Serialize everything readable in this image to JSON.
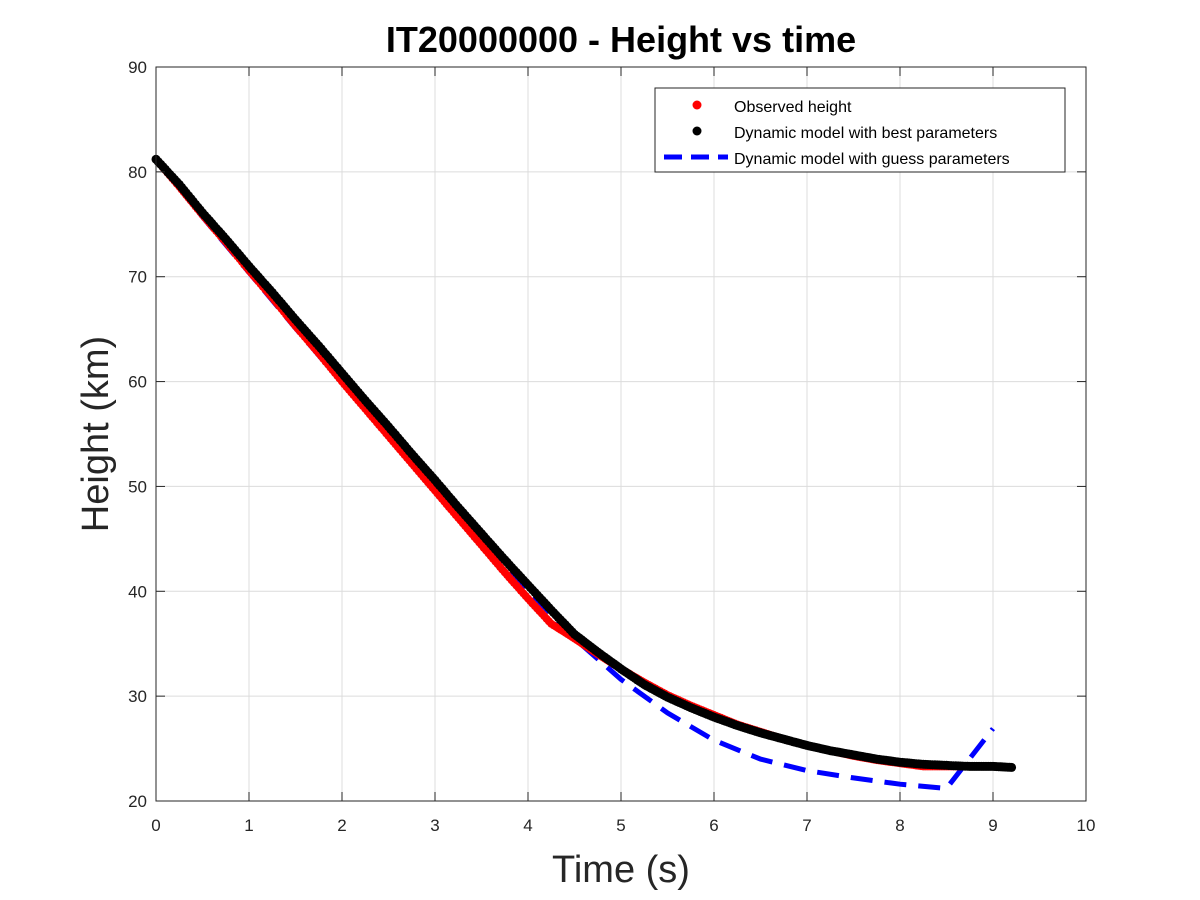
{
  "chart_data": {
    "type": "scatter",
    "title": "IT20000000 - Height vs time",
    "xlabel": "Time (s)",
    "ylabel": "Height (km)",
    "xlim": [
      0,
      10
    ],
    "ylim": [
      20,
      90
    ],
    "xticks": [
      0,
      1,
      2,
      3,
      4,
      5,
      6,
      7,
      8,
      9,
      10
    ],
    "yticks": [
      20,
      30,
      40,
      50,
      60,
      70,
      80,
      90
    ],
    "grid": true,
    "legend_position": "top-right",
    "series": [
      {
        "name": "Observed height",
        "style": "markers",
        "color": "#ff0000",
        "x": [
          0.0,
          0.25,
          0.5,
          0.75,
          1.0,
          1.25,
          1.5,
          1.75,
          2.0,
          2.25,
          2.5,
          2.75,
          3.0,
          3.25,
          3.5,
          3.75,
          4.0,
          4.25,
          4.5,
          4.75,
          5.0,
          5.25,
          5.5,
          5.75,
          6.0,
          6.25,
          6.5,
          6.75,
          7.0,
          7.25,
          7.5,
          7.75,
          8.0,
          8.25,
          8.5,
          8.75,
          9.0,
          9.2
        ],
        "y": [
          81.2,
          78.6,
          75.9,
          73.3,
          70.6,
          68.0,
          65.3,
          62.7,
          60.0,
          57.4,
          54.8,
          52.2,
          49.6,
          47.0,
          44.4,
          41.8,
          39.3,
          36.9,
          35.5,
          34.0,
          32.6,
          31.3,
          30.1,
          29.1,
          28.2,
          27.3,
          26.6,
          25.9,
          25.3,
          24.8,
          24.3,
          23.9,
          23.6,
          23.3,
          23.3,
          23.3,
          23.3,
          23.2
        ]
      },
      {
        "name": "Dynamic model with best parameters",
        "style": "markers",
        "color": "#000000",
        "x": [
          0.0,
          0.25,
          0.5,
          0.75,
          1.0,
          1.25,
          1.5,
          1.75,
          2.0,
          2.25,
          2.5,
          2.75,
          3.0,
          3.25,
          3.5,
          3.75,
          4.0,
          4.25,
          4.5,
          4.75,
          5.0,
          5.25,
          5.5,
          5.75,
          6.0,
          6.25,
          6.5,
          6.75,
          7.0,
          7.25,
          7.5,
          7.75,
          8.0,
          8.25,
          8.5,
          8.75,
          9.0,
          9.2
        ],
        "y": [
          81.2,
          78.8,
          76.1,
          73.6,
          71.0,
          68.5,
          65.9,
          63.4,
          60.8,
          58.2,
          55.7,
          53.1,
          50.6,
          48.0,
          45.5,
          43.0,
          40.6,
          38.2,
          35.9,
          34.2,
          32.6,
          31.1,
          29.9,
          28.9,
          28.0,
          27.2,
          26.5,
          25.9,
          25.3,
          24.8,
          24.4,
          24.0,
          23.7,
          23.5,
          23.4,
          23.3,
          23.3,
          23.2
        ]
      },
      {
        "name": "Dynamic model with guess parameters",
        "style": "dashed",
        "color": "#0000ff",
        "x": [
          0.0,
          0.5,
          1.0,
          1.5,
          2.0,
          2.5,
          3.0,
          3.5,
          4.0,
          4.5,
          5.0,
          5.5,
          6.0,
          6.5,
          7.0,
          7.5,
          8.0,
          8.5,
          9.0
        ],
        "y": [
          81.2,
          75.7,
          70.4,
          65.1,
          59.9,
          54.9,
          49.9,
          44.9,
          40.1,
          35.5,
          31.6,
          28.4,
          25.8,
          24.0,
          22.9,
          22.2,
          21.6,
          21.2,
          26.9
        ]
      }
    ]
  }
}
